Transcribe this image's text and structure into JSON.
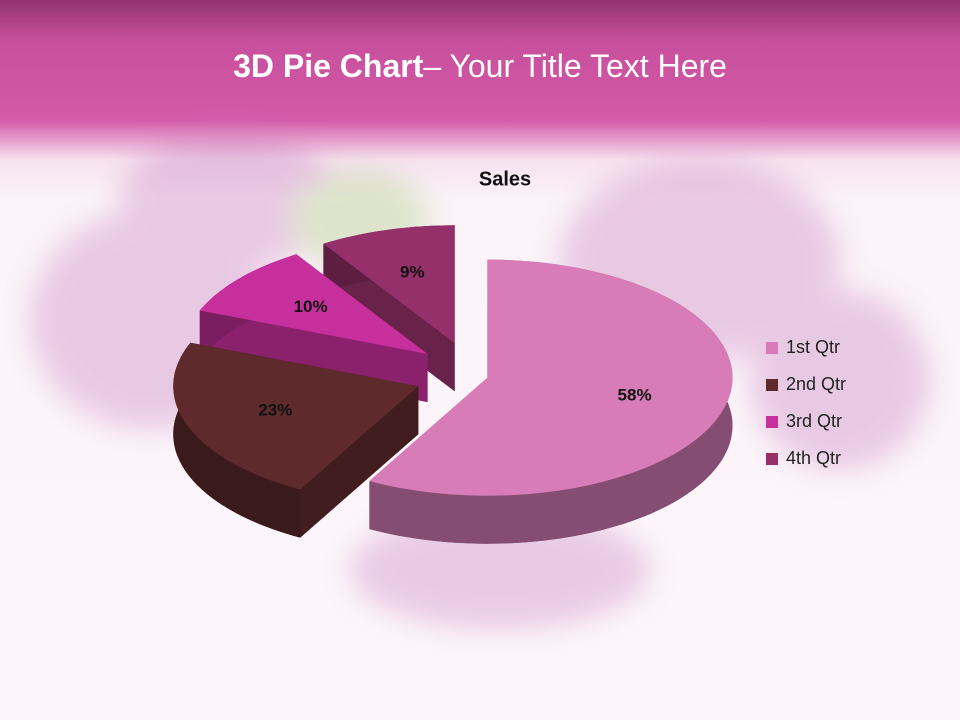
{
  "header": {
    "title_bold": "3D Pie Chart",
    "title_rest": "– Your Title Text Here"
  },
  "chart_data": {
    "type": "pie",
    "title": "Sales",
    "categories": [
      "1st Qtr",
      "2nd Qtr",
      "3rd Qtr",
      "4th Qtr"
    ],
    "values": [
      58,
      23,
      10,
      9
    ],
    "value_labels": [
      "58%",
      "23%",
      "10%",
      "9%"
    ],
    "colors": [
      "#d87cb8",
      "#5e2a2c",
      "#c62f9c",
      "#96306a"
    ],
    "legend": "right"
  }
}
